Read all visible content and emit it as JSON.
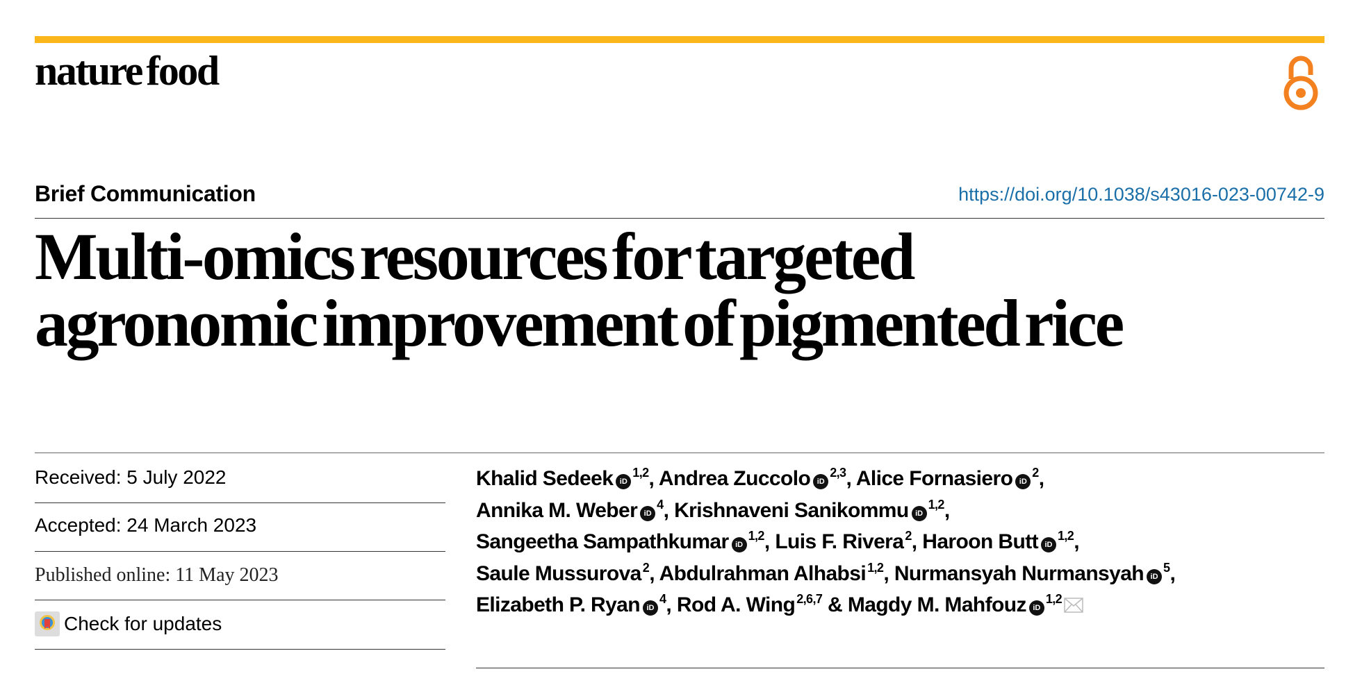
{
  "journal": {
    "name": "nature food"
  },
  "header": {
    "article_type": "Brief Communication",
    "doi": "https://doi.org/10.1038/s43016-023-00742-9"
  },
  "title": {
    "line1": "Multi-omics resources for targeted",
    "line2": "agronomic improvement of pigmented rice"
  },
  "dates": {
    "received": "Received: 5 July 2022",
    "accepted": "Accepted: 24 March 2023",
    "published": "Published online: 11 May 2023",
    "check_updates": "Check for updates"
  },
  "colors": {
    "accent": "#fbb61b",
    "open_access": "#f48120",
    "link": "#1a6fa8"
  },
  "authors": [
    {
      "name": "Khalid Sedeek",
      "orcid": true,
      "sup": "1,2"
    },
    {
      "name": "Andrea Zuccolo",
      "orcid": true,
      "sup": "2,3"
    },
    {
      "name": "Alice Fornasiero",
      "orcid": true,
      "sup": "2"
    },
    {
      "name": "Annika M. Weber",
      "orcid": true,
      "sup": "4"
    },
    {
      "name": "Krishnaveni Sanikommu",
      "orcid": true,
      "sup": "1,2"
    },
    {
      "name": "Sangeetha Sampathkumar",
      "orcid": true,
      "sup": "1,2"
    },
    {
      "name": "Luis F. Rivera",
      "orcid": false,
      "sup": "2"
    },
    {
      "name": "Haroon Butt",
      "orcid": true,
      "sup": "1,2"
    },
    {
      "name": "Saule Mussurova",
      "orcid": false,
      "sup": "2"
    },
    {
      "name": "Abdulrahman Alhabsi",
      "orcid": false,
      "sup": "1,2"
    },
    {
      "name": "Nurmansyah Nurmansyah",
      "orcid": true,
      "sup": "5"
    },
    {
      "name": "Elizabeth P. Ryan",
      "orcid": true,
      "sup": "4"
    },
    {
      "name": "Rod A. Wing",
      "orcid": false,
      "sup": "2,6,7"
    },
    {
      "name": "Magdy M. Mahfouz",
      "orcid": true,
      "sup": "1,2",
      "corresponding": true
    }
  ],
  "orcid_label": "iD",
  "separators": {
    "comma": ", ",
    "and": " & "
  }
}
